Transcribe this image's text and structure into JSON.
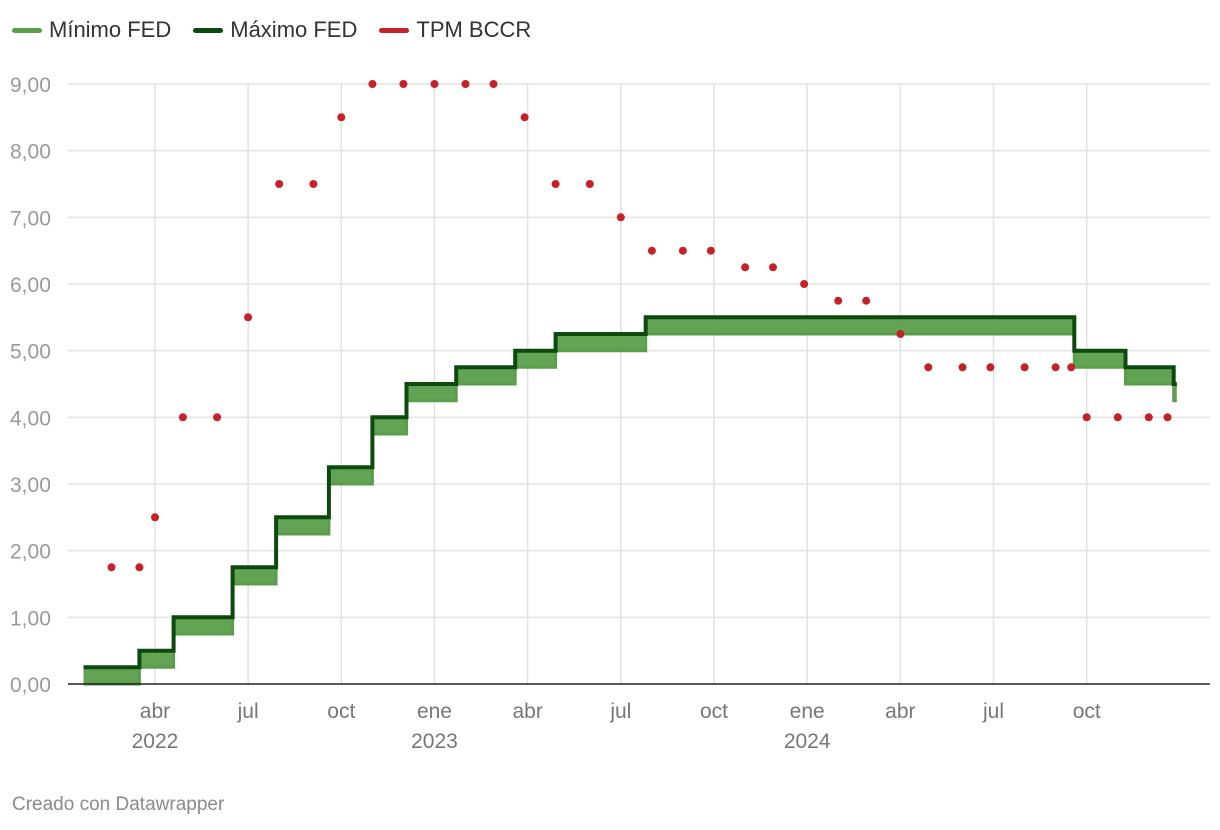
{
  "legend": [
    {
      "label": "Mínimo FED",
      "color": "#5a9e4b"
    },
    {
      "label": "Máximo FED",
      "color": "#0d4a0d"
    },
    {
      "label": "TPM BCCR",
      "color": "#c62127"
    }
  ],
  "credit": "Creado con Datawrapper",
  "chart_data": {
    "type": "line",
    "x_unit": "months since Jan 2022",
    "xlim": [
      0.2,
      36.97
    ],
    "ylim": [
      0,
      9
    ],
    "y_ticks": [
      "0,00",
      "1,00",
      "2,00",
      "3,00",
      "4,00",
      "5,00",
      "6,00",
      "7,00",
      "8,00",
      "9,00"
    ],
    "x_ticks": [
      {
        "x": 3,
        "label": "abr",
        "year": "2022"
      },
      {
        "x": 6,
        "label": "jul"
      },
      {
        "x": 9,
        "label": "oct"
      },
      {
        "x": 12,
        "label": "ene",
        "year": "2023"
      },
      {
        "x": 15,
        "label": "abr"
      },
      {
        "x": 18,
        "label": "jul"
      },
      {
        "x": 21,
        "label": "oct"
      },
      {
        "x": 24,
        "label": "ene",
        "year": "2024"
      },
      {
        "x": 27,
        "label": "abr"
      },
      {
        "x": 30,
        "label": "jul"
      },
      {
        "x": 33,
        "label": "oct"
      }
    ],
    "series": [
      {
        "name": "Mínimo FED",
        "type": "step",
        "steps": [
          [
            0.7,
            0
          ],
          [
            2.5,
            0.25
          ],
          [
            3.6,
            0.75
          ],
          [
            5.5,
            1.5
          ],
          [
            6.9,
            2.25
          ],
          [
            8.6,
            3.0
          ],
          [
            10.0,
            3.75
          ],
          [
            11.1,
            4.25
          ],
          [
            12.7,
            4.5
          ],
          [
            14.6,
            4.75
          ],
          [
            15.9,
            5.0
          ],
          [
            18.8,
            5.25
          ],
          [
            32.6,
            4.75
          ],
          [
            34.25,
            4.5
          ],
          [
            35.8,
            4.25
          ]
        ],
        "end": 35.9
      },
      {
        "name": "Máximo FED",
        "type": "step",
        "steps": [
          [
            0.7,
            0.25
          ],
          [
            2.5,
            0.5
          ],
          [
            3.6,
            1.0
          ],
          [
            5.5,
            1.75
          ],
          [
            6.9,
            2.5
          ],
          [
            8.6,
            3.25
          ],
          [
            10.0,
            4.0
          ],
          [
            11.1,
            4.5
          ],
          [
            12.7,
            4.75
          ],
          [
            14.6,
            5.0
          ],
          [
            15.9,
            5.25
          ],
          [
            18.8,
            5.5
          ],
          [
            32.6,
            5.0
          ],
          [
            34.25,
            4.75
          ],
          [
            35.8,
            4.5
          ]
        ],
        "end": 35.9
      },
      {
        "name": "TPM BCCR",
        "type": "scatter",
        "points": [
          [
            1.6,
            1.75
          ],
          [
            2.5,
            1.75
          ],
          [
            3.0,
            2.5
          ],
          [
            3.9,
            4.0
          ],
          [
            5.0,
            4.0
          ],
          [
            6.0,
            5.5
          ],
          [
            7.0,
            7.5
          ],
          [
            8.1,
            7.5
          ],
          [
            9.0,
            8.5
          ],
          [
            10.0,
            9.0
          ],
          [
            11.0,
            9.0
          ],
          [
            12.0,
            9.0
          ],
          [
            13.0,
            9.0
          ],
          [
            13.9,
            9.0
          ],
          [
            14.9,
            8.5
          ],
          [
            15.9,
            7.5
          ],
          [
            17.0,
            7.5
          ],
          [
            18.0,
            7.0
          ],
          [
            19.0,
            6.5
          ],
          [
            20.0,
            6.5
          ],
          [
            20.9,
            6.5
          ],
          [
            22.0,
            6.25
          ],
          [
            22.9,
            6.25
          ],
          [
            23.9,
            6.0
          ],
          [
            25.0,
            5.75
          ],
          [
            25.9,
            5.75
          ],
          [
            27.0,
            5.25
          ],
          [
            27.9,
            4.75
          ],
          [
            29.0,
            4.75
          ],
          [
            29.9,
            4.75
          ],
          [
            31.0,
            4.75
          ],
          [
            32.0,
            4.75
          ],
          [
            32.5,
            4.75
          ],
          [
            33.0,
            4.0
          ],
          [
            34.0,
            4.0
          ],
          [
            35.0,
            4.0
          ],
          [
            35.6,
            4.0
          ]
        ]
      }
    ]
  }
}
